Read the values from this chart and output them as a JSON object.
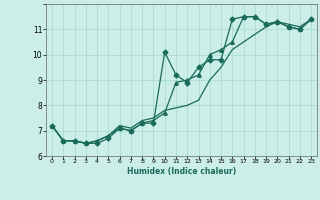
{
  "xlabel": "Humidex (Indice chaleur)",
  "bg_color": "#cceee8",
  "grid_color": "#aaddcc",
  "line_color": "#1a6b5a",
  "xlim": [
    -0.5,
    23.5
  ],
  "ylim": [
    6,
    12
  ],
  "yticks": [
    6,
    7,
    8,
    9,
    10,
    11,
    12
  ],
  "xticks": [
    0,
    1,
    2,
    3,
    4,
    5,
    6,
    7,
    8,
    9,
    10,
    11,
    12,
    13,
    14,
    15,
    16,
    17,
    18,
    19,
    20,
    21,
    22,
    23
  ],
  "xtick_labels": [
    "0",
    "1",
    "2",
    "3",
    "4",
    "5",
    "6",
    "7",
    "8",
    "9",
    "10",
    "11",
    "12",
    "13",
    "14",
    "15",
    "16",
    "17",
    "18",
    "19",
    "20",
    "21",
    "22",
    "23"
  ],
  "series1_x": [
    0,
    1,
    2,
    3,
    4,
    5,
    6,
    7,
    8,
    9,
    10,
    11,
    12,
    13,
    14,
    15,
    16,
    17,
    18,
    19,
    20,
    21,
    22,
    23
  ],
  "series1_y": [
    7.2,
    6.6,
    6.6,
    6.5,
    6.5,
    6.7,
    7.1,
    7.0,
    7.3,
    7.3,
    10.1,
    9.2,
    8.9,
    9.5,
    9.8,
    9.8,
    11.4,
    11.5,
    11.5,
    11.2,
    11.3,
    11.1,
    11.0,
    11.4
  ],
  "series2_x": [
    0,
    1,
    2,
    3,
    4,
    5,
    6,
    7,
    8,
    9,
    10,
    11,
    12,
    13,
    14,
    15,
    16,
    17,
    18,
    19,
    20,
    21,
    22,
    23
  ],
  "series2_y": [
    7.2,
    6.6,
    6.6,
    6.5,
    6.6,
    6.8,
    7.1,
    7.0,
    7.3,
    7.4,
    7.7,
    8.9,
    9.0,
    9.2,
    10.0,
    10.2,
    10.5,
    11.5,
    11.5,
    11.2,
    11.3,
    11.1,
    11.0,
    11.4
  ],
  "series3_x": [
    0,
    1,
    2,
    3,
    4,
    5,
    6,
    7,
    8,
    9,
    10,
    11,
    12,
    13,
    14,
    15,
    16,
    17,
    18,
    19,
    20,
    21,
    22,
    23
  ],
  "series3_y": [
    7.2,
    6.6,
    6.6,
    6.5,
    6.6,
    6.8,
    7.2,
    7.1,
    7.4,
    7.5,
    7.8,
    7.9,
    8.0,
    8.2,
    9.0,
    9.5,
    10.2,
    10.5,
    10.8,
    11.1,
    11.3,
    11.2,
    11.1,
    11.4
  ]
}
